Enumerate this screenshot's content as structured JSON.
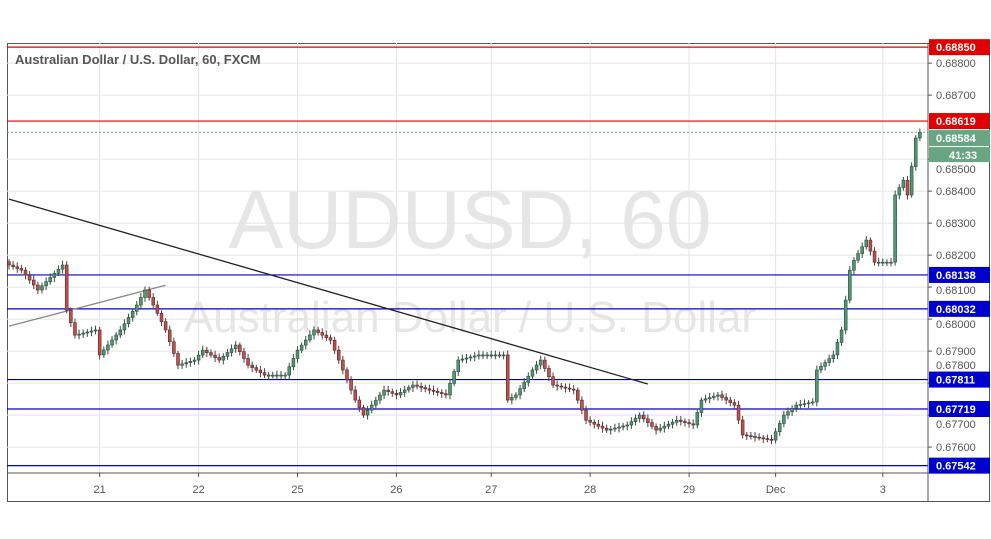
{
  "header": {
    "title": "Australian Dollar / U.S. Dollar, 60, FXCM"
  },
  "watermark": {
    "symbol": "AUDUSD, 60",
    "name": "Australian Dollar / U.S. Dollar"
  },
  "last_price": {
    "value": "0.68584",
    "countdown": "41:33",
    "color": "#6aa583"
  },
  "chart_data": {
    "type": "candlestick",
    "title": "Australian Dollar / U.S. Dollar, 60, FXCM",
    "interval": "60",
    "ylim": [
      0.67519,
      0.68863
    ],
    "xlim_hours": [
      0,
      222
    ],
    "y_ticks": [
      "0.67600",
      "0.67700",
      "0.67800",
      "0.67900",
      "0.68000",
      "0.68100",
      "0.68200",
      "0.68300",
      "0.68400",
      "0.68500",
      "0.68700",
      "0.68800"
    ],
    "x_ticks": [
      {
        "label": "21",
        "hour": 22
      },
      {
        "label": "22",
        "hour": 46
      },
      {
        "label": "25",
        "hour": 70
      },
      {
        "label": "26",
        "hour": 94
      },
      {
        "label": "27",
        "hour": 117
      },
      {
        "label": "28",
        "hour": 141
      },
      {
        "label": "29",
        "hour": 165
      },
      {
        "label": "Dec",
        "hour": 186
      },
      {
        "label": "3",
        "hour": 212
      }
    ],
    "close_path": [
      [
        0,
        0.68169
      ],
      [
        3,
        0.68153
      ],
      [
        7,
        0.68091
      ],
      [
        13,
        0.68169
      ],
      [
        14,
        0.68028
      ],
      [
        16,
        0.6795
      ],
      [
        21,
        0.67966
      ],
      [
        22,
        0.67888
      ],
      [
        27,
        0.67966
      ],
      [
        31,
        0.68044
      ],
      [
        33,
        0.68091
      ],
      [
        35,
        0.68044
      ],
      [
        38,
        0.67966
      ],
      [
        41,
        0.67856
      ],
      [
        45,
        0.67872
      ],
      [
        47,
        0.67903
      ],
      [
        51,
        0.67872
      ],
      [
        55,
        0.67919
      ],
      [
        58,
        0.67856
      ],
      [
        62,
        0.67825
      ],
      [
        67,
        0.67825
      ],
      [
        70,
        0.67903
      ],
      [
        74,
        0.67966
      ],
      [
        78,
        0.67934
      ],
      [
        81,
        0.67841
      ],
      [
        84,
        0.67747
      ],
      [
        86,
        0.677
      ],
      [
        91,
        0.67778
      ],
      [
        94,
        0.67763
      ],
      [
        98,
        0.67794
      ],
      [
        102,
        0.67778
      ],
      [
        106,
        0.67763
      ],
      [
        109,
        0.67872
      ],
      [
        114,
        0.67888
      ],
      [
        120,
        0.67888
      ],
      [
        121,
        0.67747
      ],
      [
        123,
        0.67763
      ],
      [
        127,
        0.67841
      ],
      [
        129,
        0.67872
      ],
      [
        132,
        0.67794
      ],
      [
        137,
        0.67778
      ],
      [
        140,
        0.67684
      ],
      [
        145,
        0.67653
      ],
      [
        150,
        0.67669
      ],
      [
        153,
        0.677
      ],
      [
        157,
        0.67653
      ],
      [
        162,
        0.67684
      ],
      [
        166,
        0.67669
      ],
      [
        168,
        0.67747
      ],
      [
        172,
        0.67763
      ],
      [
        176,
        0.67731
      ],
      [
        178,
        0.67638
      ],
      [
        181,
        0.67631
      ],
      [
        185,
        0.67622
      ],
      [
        188,
        0.677
      ],
      [
        191,
        0.67731
      ],
      [
        195,
        0.67741
      ],
      [
        196,
        0.67841
      ],
      [
        200,
        0.67888
      ],
      [
        202,
        0.67966
      ],
      [
        204,
        0.68153
      ],
      [
        205,
        0.68184
      ],
      [
        208,
        0.68247
      ],
      [
        210,
        0.68178
      ],
      [
        214,
        0.68178
      ],
      [
        215,
        0.68388
      ],
      [
        217,
        0.68434
      ],
      [
        218,
        0.68388
      ],
      [
        220,
        0.68566
      ],
      [
        221,
        0.68584
      ]
    ],
    "levels": [
      {
        "price": "0.68850",
        "color": "#e00000"
      },
      {
        "price": "0.68619",
        "color": "#e00000"
      },
      {
        "price": "0.68138",
        "color": "#0000cc"
      },
      {
        "price": "0.68032",
        "color": "#0000cc"
      },
      {
        "price": "0.67811",
        "color": "#0000cc"
      },
      {
        "price": "0.67719",
        "color": "#0000cc"
      },
      {
        "price": "0.67542",
        "color": "#0000cc"
      }
    ],
    "trendlines": [
      {
        "name": "descending-trendline",
        "from": [
          0,
          0.68375
        ],
        "to": [
          155,
          0.67797
        ],
        "color": "#222222"
      },
      {
        "name": "ascending-trendline",
        "from": [
          0,
          0.67978
        ],
        "to": [
          38,
          0.68106
        ],
        "color": "#888888"
      }
    ]
  }
}
